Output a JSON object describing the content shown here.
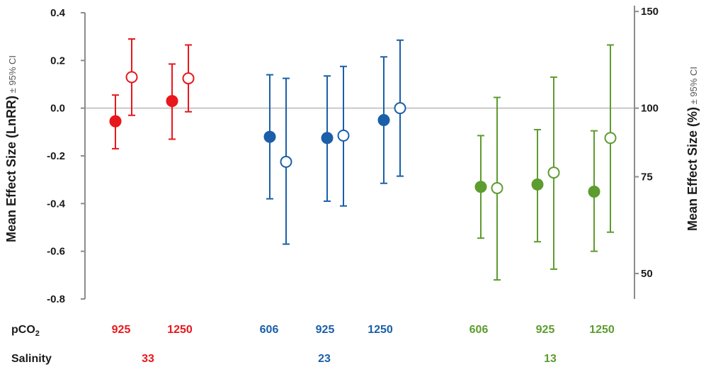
{
  "chart_data": {
    "type": "scatter",
    "left_axis": {
      "label_main": "Mean Effect Size (LnRR)",
      "label_suffix": " ± 95% CI",
      "ylim": [
        -0.8,
        0.4
      ],
      "ticks": [
        "0.4",
        "0.2",
        "0.0",
        "-0.2",
        "-0.4",
        "-0.6",
        "-0.8"
      ],
      "tick_values": [
        0.4,
        0.2,
        0.0,
        -0.2,
        -0.4,
        -0.6,
        -0.8
      ]
    },
    "right_axis": {
      "label_main": "Mean Effect Size (%)",
      "label_suffix": " ± 95% CI",
      "ticks": [
        "150",
        "100",
        "75",
        "50"
      ],
      "tick_values": [
        150,
        100,
        75,
        50
      ]
    },
    "reference_line": 0.0,
    "row_labels": {
      "pco2_main": "pCO",
      "pco2_sub": "2",
      "salinity": "Salinity"
    },
    "groups": [
      {
        "salinity": "33",
        "color": "#e8171b",
        "pco2": [
          {
            "label": "925",
            "filled": {
              "y": -0.055,
              "lo": -0.17,
              "hi": 0.055
            },
            "open": {
              "y": 0.13,
              "lo": -0.03,
              "hi": 0.29
            }
          },
          {
            "label": "1250",
            "filled": {
              "y": 0.03,
              "lo": -0.13,
              "hi": 0.185
            },
            "open": {
              "y": 0.125,
              "lo": -0.015,
              "hi": 0.265
            }
          }
        ]
      },
      {
        "salinity": "23",
        "color": "#1a5fa8",
        "pco2": [
          {
            "label": "606",
            "filled": {
              "y": -0.12,
              "lo": -0.38,
              "hi": 0.14
            },
            "open": {
              "y": -0.225,
              "lo": -0.57,
              "hi": 0.125
            }
          },
          {
            "label": "925",
            "filled": {
              "y": -0.125,
              "lo": -0.39,
              "hi": 0.135
            },
            "open": {
              "y": -0.115,
              "lo": -0.41,
              "hi": 0.175
            }
          },
          {
            "label": "1250",
            "filled": {
              "y": -0.05,
              "lo": -0.315,
              "hi": 0.215
            },
            "open": {
              "y": 0.0,
              "lo": -0.285,
              "hi": 0.285
            }
          }
        ]
      },
      {
        "salinity": "13",
        "color": "#5d9c2f",
        "pco2": [
          {
            "label": "606",
            "filled": {
              "y": -0.33,
              "lo": -0.545,
              "hi": -0.115
            },
            "open": {
              "y": -0.335,
              "lo": -0.72,
              "hi": 0.045
            }
          },
          {
            "label": "925",
            "filled": {
              "y": -0.32,
              "lo": -0.56,
              "hi": -0.09
            },
            "open": {
              "y": -0.27,
              "lo": -0.675,
              "hi": 0.13
            }
          },
          {
            "label": "1250",
            "filled": {
              "y": -0.35,
              "lo": -0.6,
              "hi": -0.095
            },
            "open": {
              "y": -0.125,
              "lo": -0.52,
              "hi": 0.265
            }
          }
        ]
      }
    ]
  }
}
